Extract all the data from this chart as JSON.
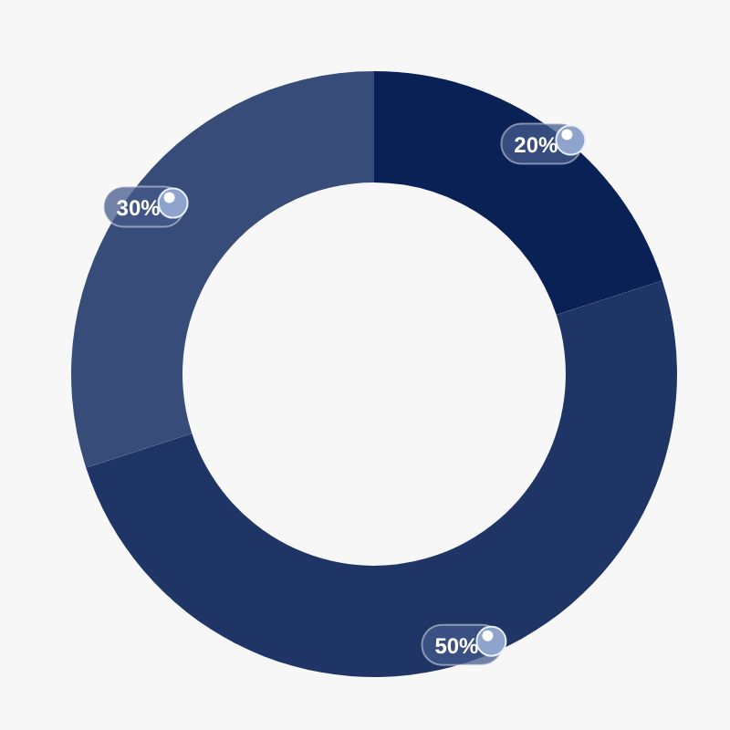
{
  "chart_data": {
    "type": "donut",
    "categories": [
      null,
      null,
      null
    ],
    "values": [
      20,
      50,
      30
    ],
    "colors": [
      "#0a2156",
      "#1f3566",
      "#374c78"
    ],
    "value_labels": [
      "20%",
      "50%",
      "30%"
    ]
  }
}
